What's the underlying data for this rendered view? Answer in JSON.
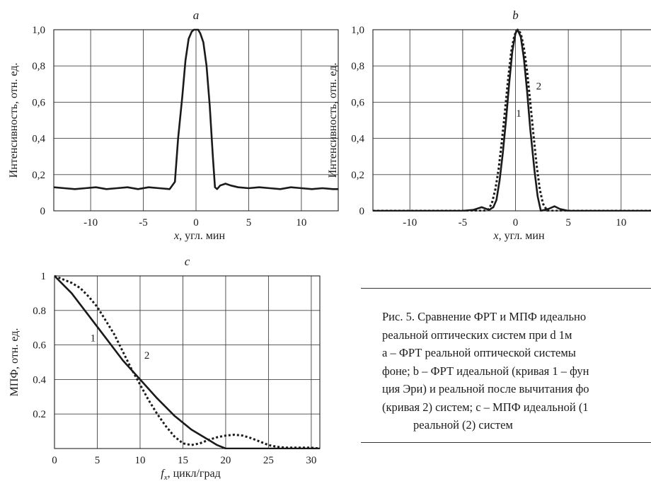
{
  "chart_data": [
    {
      "id": "a",
      "type": "line",
      "title": "a",
      "xlabel": "x, угл. мин",
      "ylabel": "Интенсивность, отн. ед.",
      "xlim": [
        -13.5,
        13.5
      ],
      "ylim": [
        0,
        1.0
      ],
      "xticks": [
        -10,
        -5,
        0,
        5,
        10
      ],
      "xtick_labels": [
        "-10",
        "-5",
        "0",
        "5",
        "10"
      ],
      "yticks": [
        0,
        0.2,
        0.4,
        0.6,
        0.8,
        1.0
      ],
      "ytick_labels": [
        "0",
        "0,2",
        "0,4",
        "0,6",
        "0,8",
        "1,0"
      ],
      "grid": true,
      "series": [
        {
          "style": "solid",
          "x": [
            -13.5,
            -12.5,
            -11.5,
            -10.5,
            -9.5,
            -8.5,
            -7.5,
            -6.5,
            -5.5,
            -4.5,
            -3.5,
            -2.5,
            -2.0,
            -1.7,
            -1.3,
            -1.0,
            -0.7,
            -0.4,
            -0.2,
            0,
            0.2,
            0.4,
            0.7,
            1.0,
            1.3,
            1.6,
            1.8,
            2.0,
            2.3,
            2.8,
            3.3,
            4.0,
            5.0,
            6.0,
            7.0,
            8.0,
            9.0,
            10.0,
            11.0,
            12.0,
            13.0,
            13.5
          ],
          "y": [
            0.13,
            0.125,
            0.12,
            0.125,
            0.13,
            0.12,
            0.125,
            0.13,
            0.12,
            0.13,
            0.125,
            0.12,
            0.16,
            0.4,
            0.63,
            0.83,
            0.95,
            0.99,
            1.0,
            1.0,
            1.0,
            0.98,
            0.93,
            0.8,
            0.58,
            0.3,
            0.13,
            0.12,
            0.14,
            0.15,
            0.14,
            0.13,
            0.125,
            0.13,
            0.125,
            0.12,
            0.13,
            0.125,
            0.12,
            0.125,
            0.12,
            0.12
          ]
        }
      ]
    },
    {
      "id": "b",
      "type": "line",
      "title": "b",
      "xlabel": "x, угл. мин",
      "ylabel": "Интенсивность, отн. ед.",
      "xlim": [
        -13.5,
        13.5
      ],
      "ylim": [
        0,
        1.0
      ],
      "xticks": [
        -10,
        -5,
        0,
        5,
        10
      ],
      "xtick_labels": [
        "-10",
        "-5",
        "0",
        "5",
        "10"
      ],
      "yticks": [
        0,
        0.2,
        0.4,
        0.6,
        0.8,
        1.0
      ],
      "ytick_labels": [
        "0",
        "0,2",
        "0,4",
        "0,6",
        "0,8",
        "1,0"
      ],
      "grid": true,
      "annotations": [
        {
          "text": "1",
          "x": 0.3,
          "y": 0.52
        },
        {
          "text": "2",
          "x": 2.2,
          "y": 0.67
        }
      ],
      "series": [
        {
          "name": "1",
          "style": "solid",
          "x": [
            -13.5,
            -5,
            -4,
            -3.2,
            -2.5,
            -2.1,
            -1.8,
            -1.5,
            -1.2,
            -0.9,
            -0.6,
            -0.3,
            0,
            0.2,
            0.5,
            0.8,
            1.1,
            1.4,
            1.8,
            2.1,
            2.4,
            3.1,
            3.7,
            4.2,
            5,
            13.5
          ],
          "y": [
            0,
            0,
            0.005,
            0.02,
            0.005,
            0.02,
            0.06,
            0.17,
            0.32,
            0.5,
            0.7,
            0.88,
            0.98,
            1.0,
            0.96,
            0.84,
            0.66,
            0.45,
            0.22,
            0.08,
            0.0,
            0.01,
            0.025,
            0.01,
            0,
            0
          ]
        },
        {
          "name": "2",
          "style": "dotted",
          "x": [
            -13.5,
            -3,
            -2.5,
            -2.2,
            -1.9,
            -1.6,
            -1.3,
            -1.0,
            -0.7,
            -0.4,
            -0.1,
            0.2,
            0.5,
            0.8,
            1.1,
            1.4,
            1.7,
            2.0,
            2.3,
            2.6,
            3.0,
            13.5
          ],
          "y": [
            0,
            0,
            0.01,
            0.05,
            0.12,
            0.23,
            0.38,
            0.55,
            0.73,
            0.88,
            0.97,
            1.0,
            0.98,
            0.9,
            0.77,
            0.6,
            0.42,
            0.25,
            0.12,
            0.04,
            0.0,
            0
          ]
        }
      ]
    },
    {
      "id": "c",
      "type": "line",
      "title": "c",
      "xlabel": "fx, цикл/град",
      "ylabel": "МПФ, отн. ед.",
      "xlim": [
        0,
        31
      ],
      "ylim": [
        0,
        1.0
      ],
      "xticks": [
        0,
        5,
        10,
        15,
        20,
        25,
        30
      ],
      "xtick_labels": [
        "0",
        "5",
        "10",
        "15",
        "20",
        "25",
        "30"
      ],
      "yticks": [
        0,
        0.2,
        0.4,
        0.6,
        0.8,
        1.0
      ],
      "ytick_labels": [
        "",
        "0.2",
        "0.4",
        "0.6",
        "0.8",
        "1"
      ],
      "grid": true,
      "annotations": [
        {
          "text": "1",
          "x": 4.5,
          "y": 0.62
        },
        {
          "text": "2",
          "x": 10.8,
          "y": 0.52
        }
      ],
      "series": [
        {
          "name": "1",
          "style": "solid",
          "x": [
            0,
            2,
            4,
            6,
            8,
            10,
            12,
            14,
            16,
            18,
            19,
            20,
            22,
            31
          ],
          "y": [
            1.0,
            0.9,
            0.77,
            0.64,
            0.51,
            0.4,
            0.29,
            0.19,
            0.11,
            0.05,
            0.02,
            0.0,
            0.0,
            0.0
          ]
        },
        {
          "name": "2",
          "style": "dotted",
          "x": [
            0,
            2,
            3,
            4,
            5,
            6,
            7,
            8,
            9,
            10,
            11,
            12,
            13,
            14,
            15,
            16,
            17,
            18,
            19,
            20,
            21,
            22,
            23,
            24,
            25,
            26,
            27,
            28,
            29,
            30,
            31
          ],
          "y": [
            1.0,
            0.96,
            0.93,
            0.88,
            0.82,
            0.74,
            0.66,
            0.56,
            0.46,
            0.37,
            0.28,
            0.2,
            0.13,
            0.07,
            0.03,
            0.02,
            0.03,
            0.05,
            0.065,
            0.075,
            0.08,
            0.075,
            0.06,
            0.04,
            0.02,
            0.01,
            0.005,
            0.005,
            0.005,
            0.005,
            0.0
          ]
        }
      ]
    }
  ],
  "caption": {
    "lines": [
      "Рис. 5. Сравнение ФРТ и МПФ идеально",
      "реальной  оптических систем при  d    1м",
      "a – ФРТ реальной оптической системы",
      "фоне; b – ФРТ идеальной (кривая 1 – фун",
      "ция Эри) и реальной после вычитания фо",
      "(кривая 2) систем;  с – МПФ идеальной (1",
      "реальной (2) систем"
    ]
  }
}
